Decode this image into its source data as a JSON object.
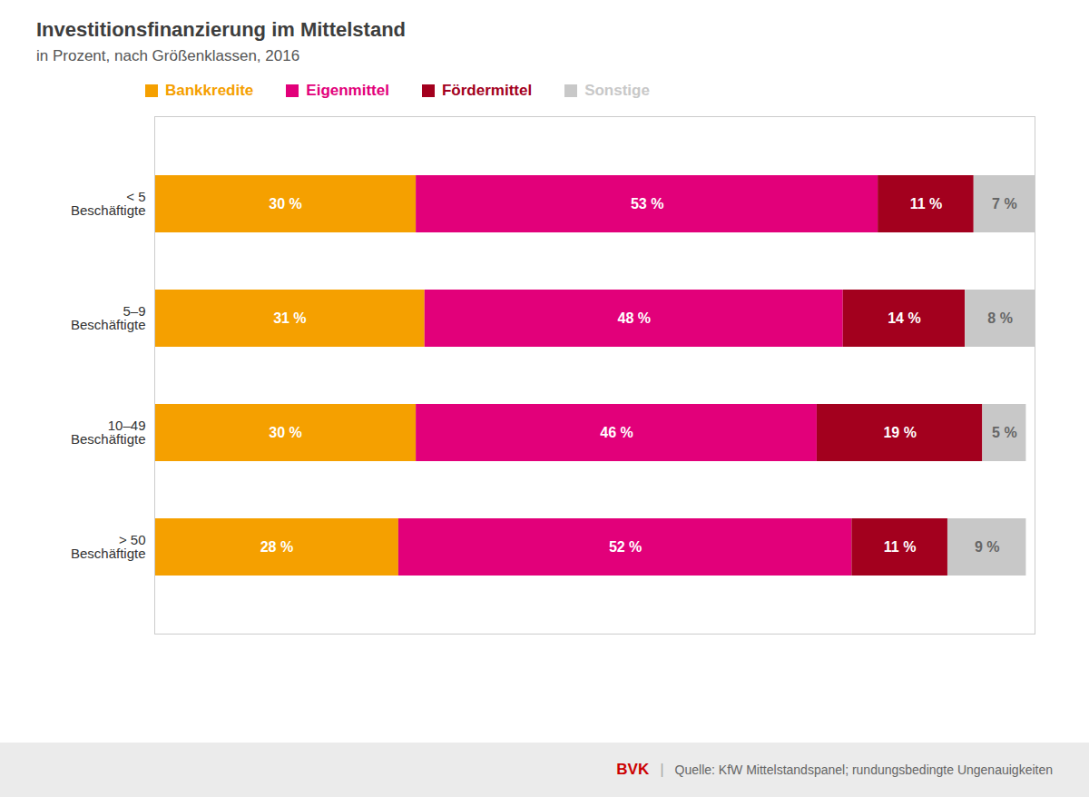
{
  "chart_data": {
    "type": "bar",
    "orientation": "horizontal",
    "stacked": true,
    "title": "Investitionsfinanzierung im Mittelstand",
    "subtitle": "in Prozent, nach Größenklassen, 2016",
    "caption": "Quelle: KfW Mittelstandspanel; rundungsbedingte Ungenauigkeiten",
    "annotations": [
      "BVK",
      "|"
    ],
    "categories": [
      "< 5\nBeschäftigte",
      "5–9\nBeschäftigte",
      "10–49\nBeschäftigte",
      "> 50\nBeschäftigte"
    ],
    "series": [
      {
        "name": "Bankkredite",
        "color": "#F5A000",
        "values": [
          30,
          31,
          30,
          28
        ],
        "value_labels": [
          "30 %",
          "31 %",
          "30 %",
          "28 %"
        ]
      },
      {
        "name": "Eigenmittel",
        "color": "#E2007A",
        "values": [
          53,
          48,
          46,
          52
        ],
        "value_labels": [
          "53 %",
          "48 %",
          "46 %",
          "52 %"
        ]
      },
      {
        "name": "Fördermittel",
        "color": "#A3001E",
        "values": [
          11,
          14,
          19,
          11
        ],
        "value_labels": [
          "11 %",
          "14 %",
          "19 %",
          "11 %"
        ]
      },
      {
        "name": "Sonstige",
        "color": "#C8C8C8",
        "values": [
          7,
          8,
          5,
          9
        ],
        "value_labels": [
          "7 %",
          "8 %",
          "5 %",
          "9 %"
        ]
      }
    ],
    "xlim": [
      0,
      101
    ],
    "tick_labels": false,
    "grid": false,
    "legend": "top",
    "data_labels": true
  }
}
